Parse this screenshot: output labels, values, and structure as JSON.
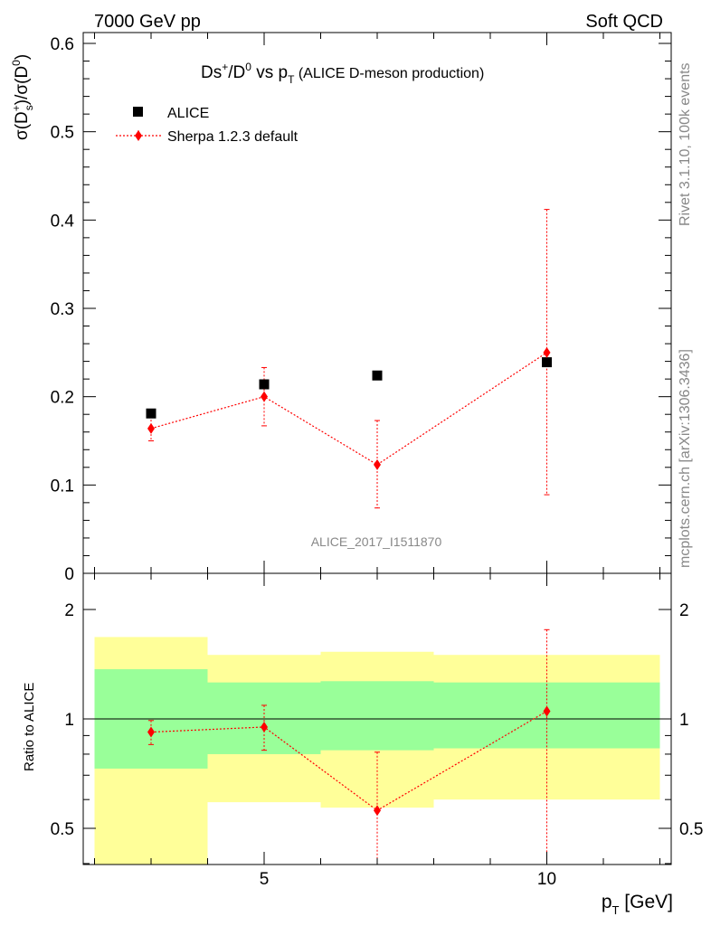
{
  "header": {
    "left": "7000 GeV pp",
    "right": "Soft QCD"
  },
  "side_text": {
    "rivet": "Rivet 3.1.10,  100k events",
    "mcplots": "mcplots.cern.ch [arXiv:1306.3436]"
  },
  "chart_data": [
    {
      "type": "scatter",
      "panel": "main",
      "title": {
        "base": "Ds",
        "sup1": "+",
        "slash": "/D",
        "sup2": "0",
        "vs": " vs p",
        "sub": "T",
        "tail": " (ALICE D-meson production)"
      },
      "ylabel": {
        "a": "σ(D",
        "sup": "+",
        "sub": "s",
        "b": ")/σ(D",
        "sup2": "0",
        "c": ")"
      },
      "watermark": "ALICE_2017_I1511870",
      "xlim": [
        1.8,
        12.2
      ],
      "ylim": [
        0,
        0.6
      ],
      "y_ticks": [
        "0",
        "0.1",
        "0.2",
        "0.3",
        "0.4",
        "0.5",
        "0.6"
      ],
      "legend_position": "top-left",
      "legend": [
        {
          "label": "ALICE",
          "marker": "square",
          "color": "#000000"
        },
        {
          "label": "Sherpa 1.2.3 default",
          "marker": "diamond",
          "color": "#ff0000",
          "line": "dotted"
        }
      ],
      "series": [
        {
          "name": "ALICE",
          "x": [
            3,
            5,
            7,
            10
          ],
          "y": [
            0.181,
            0.214,
            0.224,
            0.239
          ]
        },
        {
          "name": "Sherpa 1.2.3 default",
          "x": [
            3,
            5,
            7,
            10
          ],
          "y": [
            0.164,
            0.2,
            0.123,
            0.25
          ],
          "err_low": [
            0.15,
            0.167,
            0.074,
            0.089
          ],
          "err_high": [
            0.178,
            0.233,
            0.173,
            0.412
          ]
        }
      ]
    },
    {
      "type": "scatter",
      "panel": "ratio",
      "ylabel": "Ratio to ALICE",
      "xlabel": {
        "main": "p",
        "sub": "T",
        "unit": " [GeV]"
      },
      "x_ticks": [
        "5",
        "10"
      ],
      "y_ticks": [
        "0.5",
        "1",
        "2"
      ],
      "xlim": [
        1.8,
        12.2
      ],
      "ylim": [
        0.35,
        2.3
      ],
      "log_y": true,
      "bands": {
        "bins": [
          [
            2,
            4
          ],
          [
            4,
            6
          ],
          [
            6,
            8
          ],
          [
            8,
            12
          ]
        ],
        "inner": [
          [
            0.73,
            1.37
          ],
          [
            0.8,
            1.26
          ],
          [
            0.82,
            1.27
          ],
          [
            0.83,
            1.26
          ]
        ],
        "outer": [
          [
            0.25,
            1.68
          ],
          [
            0.59,
            1.5
          ],
          [
            0.57,
            1.53
          ],
          [
            0.6,
            1.5
          ]
        ],
        "inner_color": "#99ff99",
        "outer_color": "#ffff99"
      },
      "series": [
        {
          "name": "Sherpa 1.2.3 default",
          "x": [
            3,
            5,
            7,
            10
          ],
          "y": [
            0.92,
            0.95,
            0.56,
            1.05
          ],
          "err_low": [
            0.85,
            0.82,
            0.33,
            0.37
          ],
          "err_high": [
            0.99,
            1.09,
            0.81,
            1.76
          ]
        }
      ]
    }
  ]
}
